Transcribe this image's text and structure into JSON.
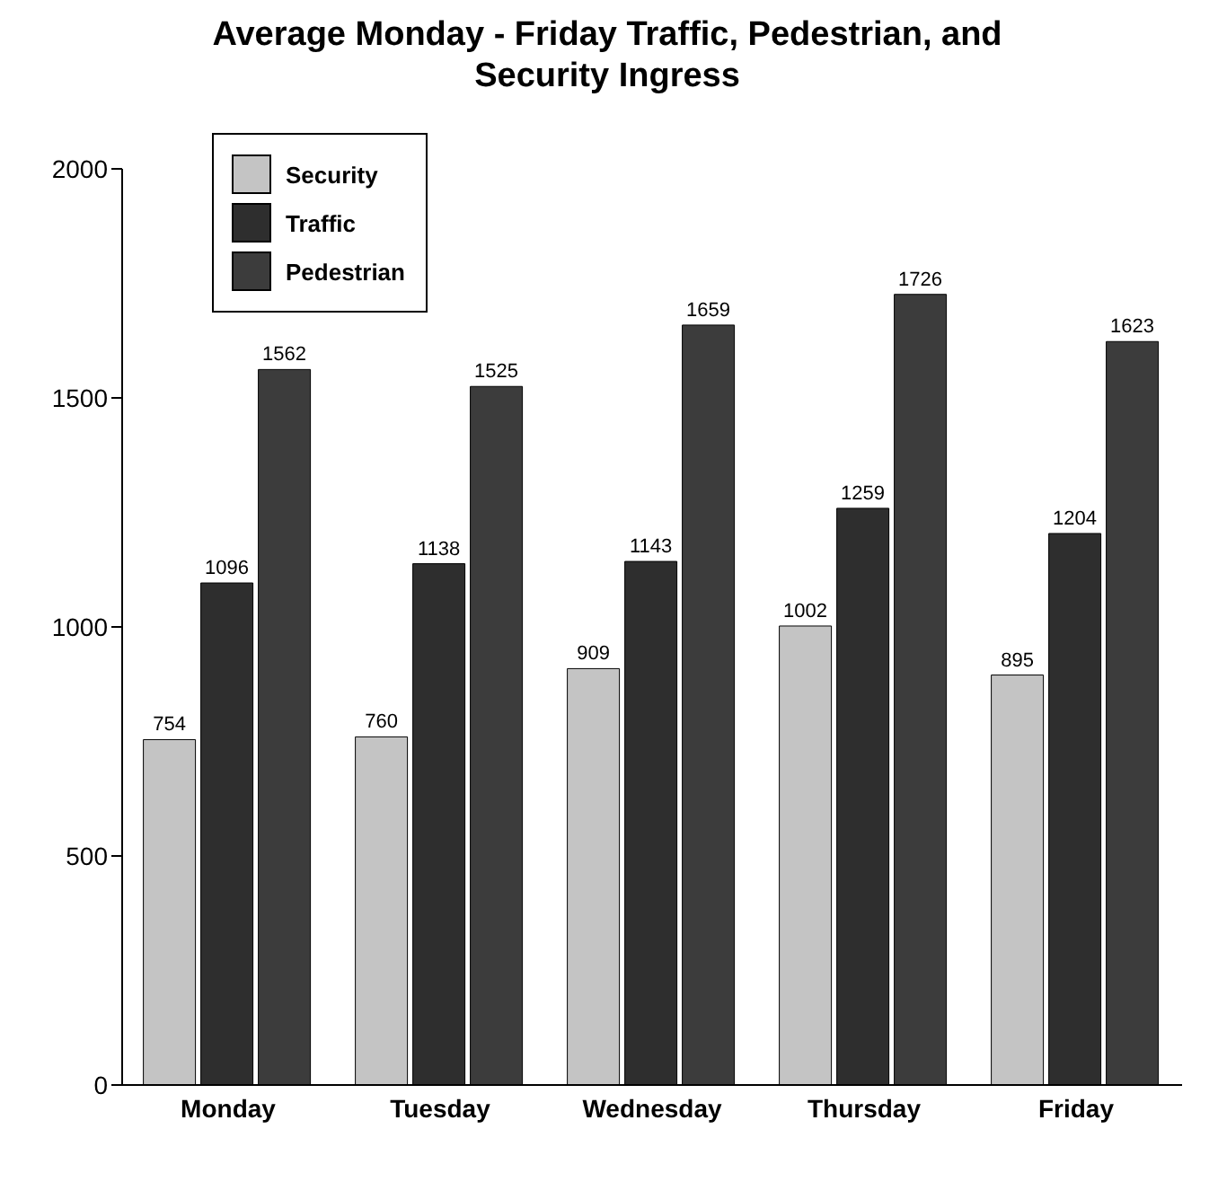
{
  "chart_data": {
    "type": "bar",
    "title": "Average Monday - Friday Traffic, Pedestrian, and Security Ingress",
    "categories": [
      "Monday",
      "Tuesday",
      "Wednesday",
      "Thursday",
      "Friday"
    ],
    "series": [
      {
        "name": "Security",
        "color": "#c4c4c4",
        "values": [
          754,
          760,
          909,
          1002,
          895
        ]
      },
      {
        "name": "Traffic",
        "color": "#2e2e2e",
        "values": [
          1096,
          1138,
          1143,
          1259,
          1204
        ]
      },
      {
        "name": "Pedestrian",
        "color": "#3c3c3c",
        "values": [
          1562,
          1525,
          1659,
          1726,
          1623
        ]
      }
    ],
    "ylim": [
      0,
      2000
    ],
    "yticks": [
      0,
      500,
      1000,
      1500,
      2000
    ],
    "grid": false,
    "legend": "top left",
    "data_labels": true
  }
}
